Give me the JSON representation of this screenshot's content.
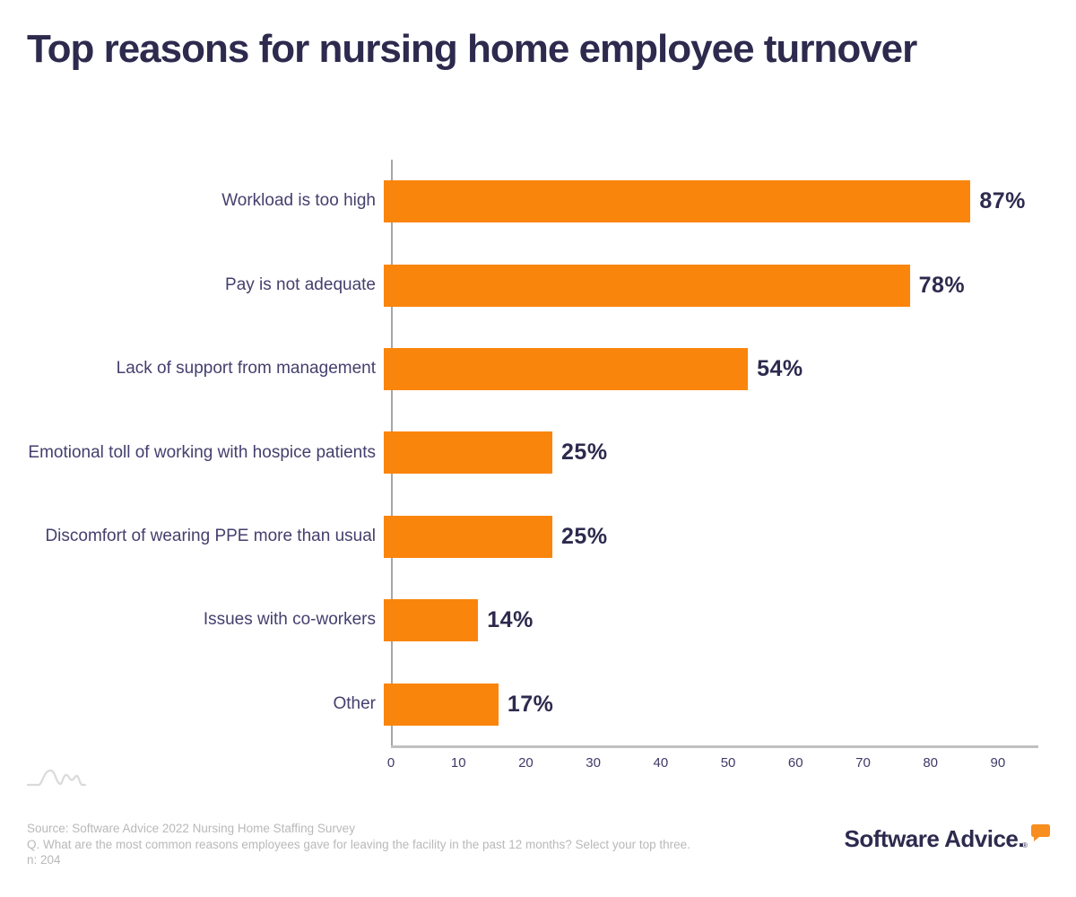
{
  "title": "Top reasons for nursing home employee turnover",
  "chart_data": {
    "type": "bar",
    "orientation": "horizontal",
    "title": "Top reasons for nursing home employee turnover",
    "categories": [
      "Workload is too high",
      "Pay is not adequate",
      "Lack of support from management",
      "Emotional toll of working with hospice patients",
      "Discomfort of wearing PPE more than usual",
      "Issues with co-workers",
      "Other"
    ],
    "values": [
      87,
      78,
      54,
      25,
      25,
      14,
      17
    ],
    "value_labels": [
      "87%",
      "78%",
      "54%",
      "25%",
      "25%",
      "14%",
      "17%"
    ],
    "xlabel": "",
    "ylabel": "",
    "xlim": [
      0,
      96
    ],
    "xticks": [
      0,
      10,
      20,
      30,
      40,
      50,
      60,
      70,
      80,
      90
    ],
    "grid": false,
    "legend": false,
    "bar_color": "#fa850d"
  },
  "colors": {
    "accent_orange": "#fa850d",
    "navy": "#2d2a4e",
    "category_label": "#443f6d",
    "axis_line": "#b3b3b3",
    "source_text": "#b9b9b9"
  },
  "footer": {
    "source_line1": "Source: Software Advice 2022 Nursing Home Staffing Survey",
    "source_line2": "Q. What are the most common reasons employees gave for leaving the facility in the past 12 months? Select your top three.",
    "source_line3": "n: 204",
    "logo_text": "Software Advice.",
    "logo_registered": "®"
  }
}
